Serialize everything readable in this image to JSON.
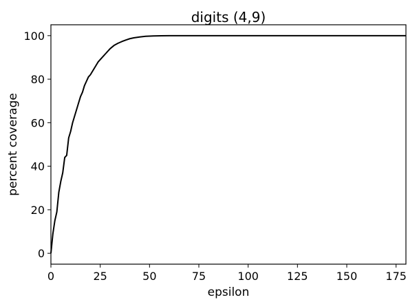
{
  "chart_data": {
    "type": "line",
    "title": "digits (4,9)",
    "xlabel": "epsilon",
    "ylabel": "percent coverage",
    "xlim": [
      0,
      180
    ],
    "ylim": [
      -5,
      105
    ],
    "xticks": [
      0,
      25,
      50,
      75,
      100,
      125,
      150,
      175
    ],
    "yticks": [
      0,
      20,
      40,
      60,
      80,
      100
    ],
    "grid": false,
    "line_color": "#000000",
    "series": [
      {
        "x": [
          0,
          1,
          2,
          3,
          4,
          5,
          6,
          7,
          8,
          9,
          10,
          11,
          12,
          13,
          14,
          15,
          16,
          17,
          18,
          19,
          20,
          22,
          24,
          26,
          28,
          30,
          32,
          34,
          36,
          38,
          40,
          42,
          45,
          48,
          52,
          56,
          60,
          70,
          80,
          100,
          130,
          160,
          180
        ],
        "y": [
          0,
          9,
          15,
          19,
          28,
          33,
          37,
          44,
          45,
          53,
          56,
          60,
          63,
          66,
          69,
          72,
          74,
          77,
          79,
          81,
          82,
          85,
          88,
          90,
          92,
          94,
          95.5,
          96.5,
          97.3,
          98,
          98.6,
          99,
          99.4,
          99.7,
          99.85,
          99.95,
          100,
          100,
          100,
          100,
          100,
          100,
          100
        ]
      }
    ]
  }
}
